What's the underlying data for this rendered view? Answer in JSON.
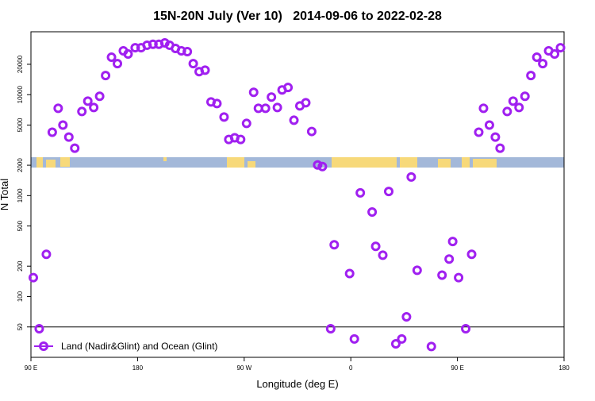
{
  "chart_data": {
    "type": "scatter",
    "title": "15N-20N July (Ver 10)   2014-09-06 to 2022-02-28",
    "xlabel": "Longitude (deg E)",
    "ylabel": "N Total",
    "xlim": [
      90,
      540
    ],
    "xticks": [
      {
        "value": 90,
        "label": "90 E"
      },
      180,
      {
        "value": 270,
        "label": "90 W"
      },
      {
        "value": 360,
        "label": "0"
      },
      {
        "value": 450,
        "label": "90 E"
      },
      {
        "value": 540,
        "label": "180"
      }
    ],
    "ylim": [
      25,
      42000
    ],
    "ylog": true,
    "yticks": [
      50,
      100,
      200,
      500,
      1000,
      2000,
      5000,
      10000,
      20000
    ],
    "hline": 50,
    "legend": "lower left",
    "series": [
      {
        "name": "Land (Nadir&Glint) and Ocean (Glint)",
        "color": "#a020f0",
        "x": [
          92,
          97,
          103,
          108,
          113,
          117,
          122,
          127,
          133,
          138,
          143,
          148,
          153,
          158,
          163,
          168,
          172,
          178,
          183,
          188,
          193,
          198,
          203,
          207,
          212,
          217,
          222,
          227,
          232,
          237,
          242,
          247,
          253,
          257,
          262,
          267,
          272,
          278,
          282,
          288,
          293,
          298,
          302,
          307,
          312,
          317,
          322,
          327,
          332,
          336,
          343,
          346,
          359,
          363,
          368,
          378,
          381,
          387,
          392,
          398,
          403,
          407,
          411,
          416,
          428,
          437,
          443,
          446,
          451,
          457,
          462,
          468,
          472,
          477,
          482,
          486,
          492,
          497,
          502,
          507,
          512,
          517,
          522,
          527,
          532,
          537
        ],
        "values": [
          154,
          48,
          262,
          4245,
          7330,
          5000,
          3800,
          2950,
          6810,
          8630,
          7460,
          9640,
          15460,
          23500,
          20300,
          27200,
          25300,
          29200,
          29200,
          30900,
          31600,
          31600,
          32600,
          30900,
          28700,
          27200,
          26700,
          20300,
          16900,
          17500,
          8470,
          8170,
          6000,
          3600,
          3740,
          3600,
          5190,
          10550,
          7330,
          7330,
          9460,
          7460,
          11140,
          11780,
          5580,
          7740,
          8320,
          4320,
          2010,
          1940,
          48,
          326,
          169,
          38,
          1065,
          688,
          314,
          257,
          1100,
          34,
          38,
          63,
          1530,
          182,
          32,
          163,
          235,
          351,
          154,
          48,
          262,
          4245,
          7330,
          5000,
          3800,
          2950,
          6810,
          8630,
          7460,
          9640,
          15460,
          23500,
          20300,
          27200,
          25300,
          29200
        ]
      }
    ]
  }
}
